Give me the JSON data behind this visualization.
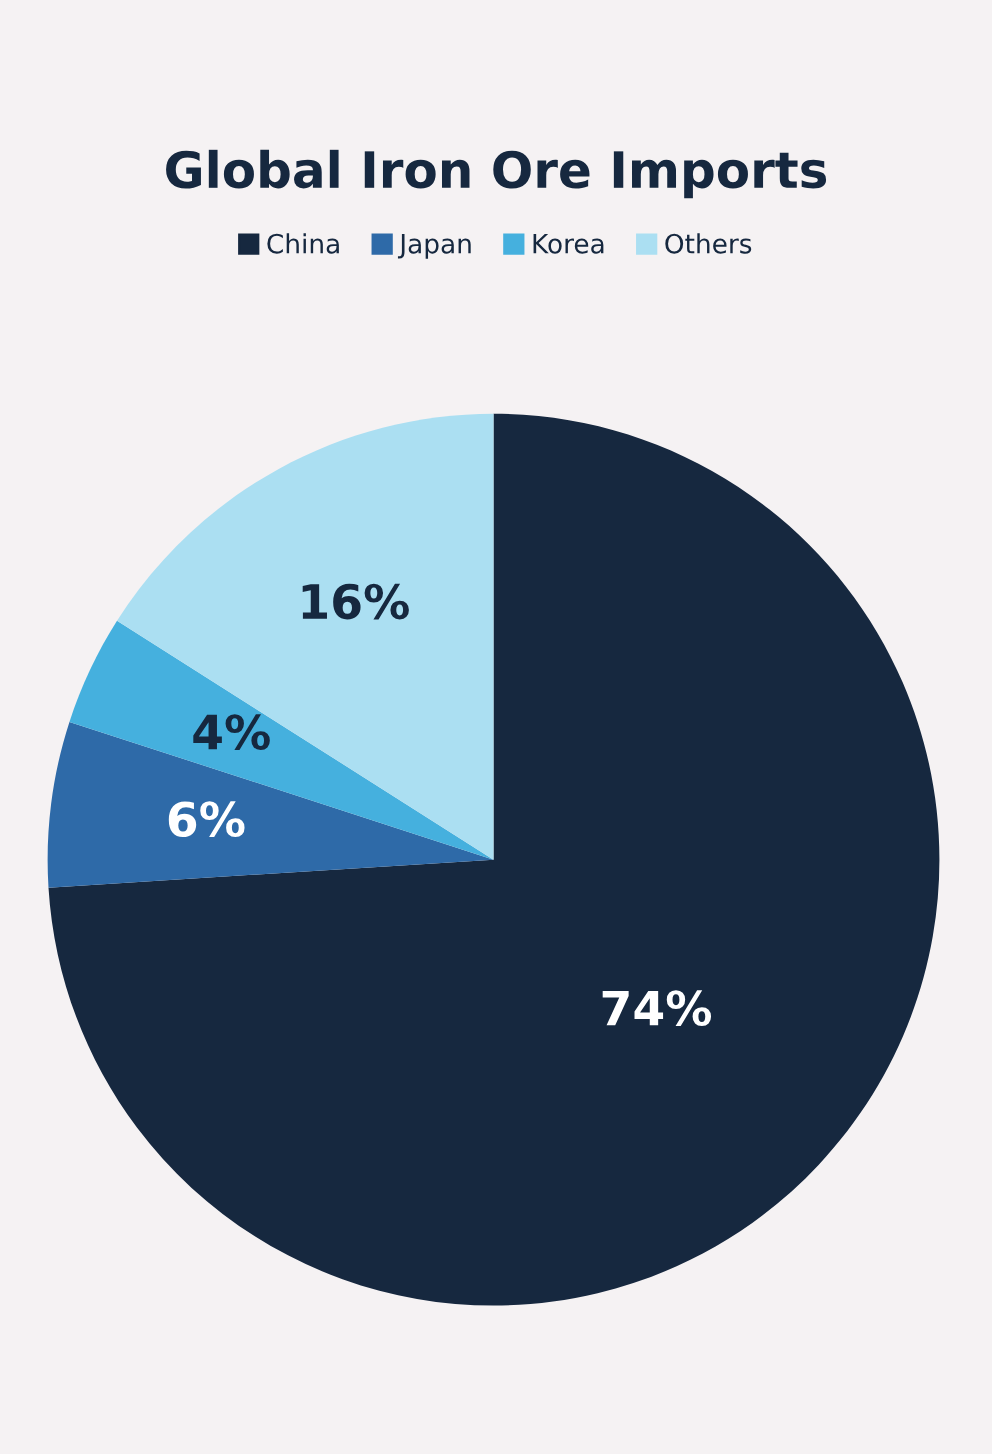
{
  "chart_data": {
    "type": "pie",
    "title": "Global Iron Ore Imports",
    "categories": [
      "China",
      "Japan",
      "Korea",
      "Others"
    ],
    "values": [
      74,
      6,
      4,
      16
    ],
    "colors": [
      "#16283f",
      "#2e6aa8",
      "#45b0de",
      "#abdff2"
    ],
    "value_labels": [
      "74%",
      "6%",
      "4%",
      "16%"
    ],
    "legend": "top"
  }
}
